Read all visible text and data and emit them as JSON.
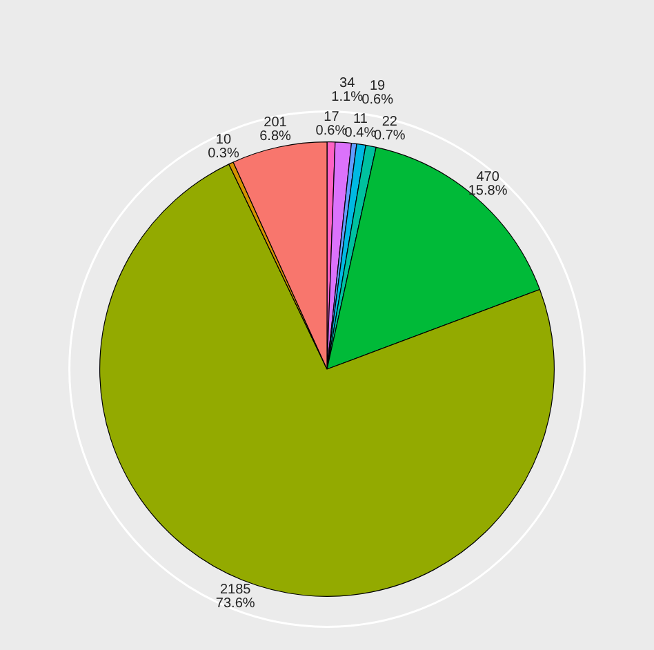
{
  "chart_data": {
    "type": "pie",
    "categories": [
      null,
      null,
      null,
      null,
      null,
      null,
      null,
      null,
      null
    ],
    "values": [
      17,
      34,
      11,
      19,
      22,
      470,
      2185,
      10,
      201
    ],
    "colors": [
      "#ff61c3",
      "#db72fb",
      "#619cff",
      "#00b9e3",
      "#00c19f",
      "#00ba38",
      "#93aa00",
      "#d39200",
      "#f8766d"
    ],
    "value_labels": [
      "17\n0.6%",
      "34\n1.1%",
      "11\n0.4%",
      "19\n0.6%",
      "22\n0.7%",
      "470\n15.8%",
      "2185\n73.6%",
      "10\n0.3%",
      "201\n6.8%"
    ]
  }
}
